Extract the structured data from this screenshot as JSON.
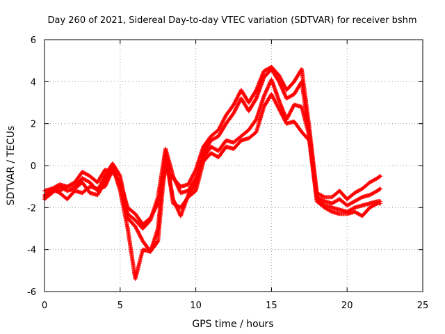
{
  "chart_data": {
    "type": "scatter",
    "title": "Day 260 of 2021, Sidereal Day-to-day VTEC variation (SDTVAR) for receiver bshm",
    "xlabel": "GPS time / hours",
    "ylabel": "SDTVAR / TECUs",
    "xlim": [
      0,
      25
    ],
    "ylim": [
      -6,
      6
    ],
    "xticks": [
      "0",
      "5",
      "10",
      "15",
      "20",
      "25"
    ],
    "yticks": [
      "-6",
      "-4",
      "-2",
      "0",
      "2",
      "4",
      "6"
    ],
    "grid": true,
    "marker": "plus",
    "color": "#ff0000",
    "series": [
      {
        "x": [
          0,
          0.5,
          1,
          1.5,
          2,
          2.5,
          3,
          3.5,
          4,
          4.5,
          5,
          5.5,
          6,
          6.5,
          7,
          7.5,
          8,
          8.5,
          9,
          9.5,
          10,
          10.5,
          11,
          11.5,
          12,
          12.5,
          13,
          13.5,
          14,
          14.5,
          15,
          15.5,
          16,
          16.5,
          17,
          17.5,
          18,
          18.5,
          19,
          19.5,
          20,
          20.5,
          21,
          21.5,
          22,
          22.2
        ],
        "y": [
          -1.2,
          -1.1,
          -0.9,
          -1.0,
          -0.8,
          -0.3,
          -0.5,
          -0.8,
          -0.2,
          -0.3,
          -0.8,
          -2.0,
          -2.3,
          -2.8,
          -2.5,
          -1.8,
          -0.2,
          -0.6,
          -1.0,
          -0.9,
          -0.2,
          0.9,
          1.4,
          1.7,
          2.4,
          2.9,
          3.6,
          3.0,
          3.6,
          4.5,
          4.7,
          4.3,
          3.6,
          4.0,
          4.6,
          1.8,
          -1.3,
          -1.5,
          -1.5,
          -1.2,
          -1.6,
          -1.3,
          -1.1,
          -0.8,
          -0.6,
          -0.5
        ]
      },
      {
        "x": [
          0,
          0.5,
          1,
          1.5,
          2,
          2.5,
          3,
          3.5,
          4,
          4.5,
          5,
          5.5,
          6,
          6.5,
          7,
          7.5,
          8,
          8.5,
          9,
          9.5,
          10,
          10.5,
          11,
          11.5,
          12,
          12.5,
          13,
          13.5,
          14,
          14.5,
          15,
          15.5,
          16,
          16.5,
          17,
          17.5,
          18,
          18.5,
          19,
          19.5,
          20,
          20.5,
          21,
          21.5,
          22,
          22.2
        ],
        "y": [
          -1.4,
          -1.2,
          -1.2,
          -1.0,
          -1.0,
          -0.6,
          -0.8,
          -1.2,
          -0.5,
          0.1,
          -0.5,
          -2.3,
          -2.6,
          -3.0,
          -2.6,
          -1.5,
          0.8,
          -0.5,
          -1.3,
          -1.2,
          -0.6,
          0.6,
          1.2,
          1.4,
          2.0,
          2.5,
          3.2,
          2.6,
          3.2,
          4.2,
          4.6,
          4.0,
          3.2,
          3.4,
          4.0,
          1.5,
          -1.5,
          -1.7,
          -1.8,
          -1.6,
          -1.9,
          -1.7,
          -1.5,
          -1.4,
          -1.2,
          -1.1
        ]
      },
      {
        "x": [
          0,
          0.5,
          1,
          1.5,
          2,
          2.5,
          3,
          3.5,
          4,
          4.5,
          5,
          5.5,
          6,
          6.5,
          7,
          7.5,
          8,
          8.5,
          9,
          9.5,
          10,
          10.5,
          11,
          11.5,
          12,
          12.5,
          13,
          13.5,
          14,
          14.5,
          15,
          15.5,
          16,
          16.5,
          17,
          17.5,
          18,
          18.5,
          19,
          19.5,
          20,
          20.5,
          21,
          21.5,
          22,
          22.2
        ],
        "y": [
          -1.5,
          -1.1,
          -1.3,
          -1.6,
          -1.2,
          -1.3,
          -1.0,
          -1.1,
          -1.0,
          -0.2,
          -0.9,
          -2.5,
          -2.9,
          -3.6,
          -4.1,
          -3.6,
          0.4,
          -1.6,
          -2.4,
          -1.4,
          -0.9,
          0.4,
          0.9,
          0.7,
          1.2,
          1.1,
          1.4,
          1.7,
          2.2,
          3.3,
          4.1,
          3.1,
          2.2,
          2.9,
          2.8,
          1.4,
          -1.6,
          -1.9,
          -2.0,
          -2.1,
          -2.2,
          -2.0,
          -1.9,
          -1.8,
          -1.7,
          -1.7
        ]
      },
      {
        "x": [
          0,
          0.5,
          1,
          1.5,
          2,
          2.5,
          3,
          3.5,
          4,
          4.5,
          5,
          5.5,
          6,
          6.5,
          7,
          7.5,
          8,
          8.5,
          9,
          9.5,
          10,
          10.5,
          11,
          11.5,
          12,
          12.5,
          13,
          13.5,
          14,
          14.5,
          15,
          15.5,
          16,
          16.5,
          17,
          17.5,
          18,
          18.5,
          19,
          19.5,
          20,
          20.5,
          21,
          21.5,
          22,
          22.2
        ],
        "y": [
          -1.6,
          -1.3,
          -1.0,
          -1.2,
          -1.1,
          -0.8,
          -1.3,
          -1.4,
          -0.8,
          0.0,
          -1.2,
          -3.0,
          -5.4,
          -4.0,
          -4.1,
          -3.0,
          0.7,
          -1.8,
          -2.0,
          -1.5,
          -1.2,
          0.2,
          0.6,
          0.4,
          0.9,
          0.8,
          1.2,
          1.3,
          1.6,
          2.8,
          3.4,
          2.7,
          2.0,
          2.1,
          1.6,
          1.2,
          -1.7,
          -2.0,
          -2.2,
          -2.3,
          -2.3,
          -2.2,
          -2.4,
          -2.0,
          -1.8,
          -1.8
        ]
      }
    ]
  }
}
